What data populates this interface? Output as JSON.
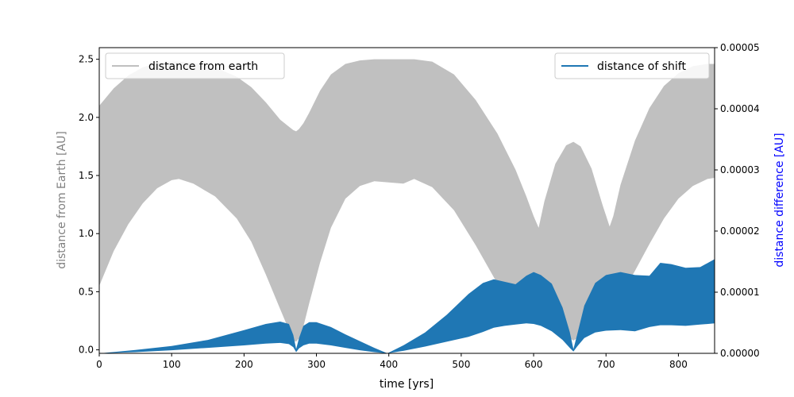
{
  "chart_data": {
    "type": "area",
    "title": "",
    "xlabel": "time [yrs]",
    "ylabel_left": "distance from Earth [AU]",
    "ylabel_right": "distance difference [AU]",
    "xlim": [
      0,
      850
    ],
    "ylim_left": [
      -0.03,
      2.6
    ],
    "ylim_right": [
      0,
      5e-05
    ],
    "x_ticks": [
      0,
      100,
      200,
      300,
      400,
      500,
      600,
      700,
      800
    ],
    "y_left_ticks": [
      0.0,
      0.5,
      1.0,
      1.5,
      2.0,
      2.5
    ],
    "y_left_tick_labels": [
      "0.0",
      "0.5",
      "1.0",
      "1.5",
      "2.0",
      "2.5"
    ],
    "y_right_ticks": [
      0,
      1e-05,
      2e-05,
      3e-05,
      4e-05,
      5e-05
    ],
    "y_right_tick_labels": [
      "0.00000",
      "0.00001",
      "0.00002",
      "0.00003",
      "0.00004",
      "0.00005"
    ],
    "grid": false,
    "legend_left_position": "upper-left",
    "legend_right_position": "upper-right",
    "colors": {
      "earth_band": "#c0c0c0",
      "shift_band": "#1f77b4",
      "left_label": "#808080",
      "right_label": "#0000ff"
    },
    "series": [
      {
        "name": "distance from earth",
        "axis": "left",
        "style": "band",
        "x": [
          0,
          20,
          40,
          60,
          80,
          100,
          110,
          130,
          160,
          190,
          210,
          230,
          250,
          260,
          268,
          272,
          276,
          282,
          290,
          305,
          320,
          340,
          360,
          380,
          400,
          420,
          435,
          460,
          490,
          520,
          550,
          575,
          590,
          600,
          607,
          615,
          630,
          645,
          655,
          665,
          680,
          695,
          705,
          710,
          720,
          740,
          760,
          780,
          800,
          820,
          840,
          850
        ],
        "upper": [
          2.1,
          2.25,
          2.36,
          2.43,
          2.47,
          2.48,
          2.48,
          2.47,
          2.43,
          2.35,
          2.26,
          2.13,
          1.98,
          1.93,
          1.89,
          1.88,
          1.9,
          1.95,
          2.04,
          2.23,
          2.37,
          2.46,
          2.49,
          2.5,
          2.5,
          2.5,
          2.5,
          2.48,
          2.37,
          2.15,
          1.86,
          1.55,
          1.32,
          1.15,
          1.05,
          1.28,
          1.6,
          1.76,
          1.79,
          1.75,
          1.56,
          1.25,
          1.06,
          1.15,
          1.42,
          1.8,
          2.08,
          2.27,
          2.38,
          2.44,
          2.46,
          2.46
        ],
        "lower": [
          0.55,
          0.85,
          1.08,
          1.26,
          1.39,
          1.46,
          1.47,
          1.43,
          1.32,
          1.13,
          0.93,
          0.65,
          0.35,
          0.2,
          0.08,
          0.07,
          0.1,
          0.2,
          0.4,
          0.75,
          1.05,
          1.3,
          1.41,
          1.45,
          1.44,
          1.43,
          1.47,
          1.4,
          1.2,
          0.9,
          0.57,
          0.4,
          0.32,
          0.3,
          0.29,
          0.27,
          0.2,
          0.12,
          0.08,
          0.12,
          0.22,
          0.32,
          0.36,
          0.37,
          0.46,
          0.68,
          0.91,
          1.13,
          1.3,
          1.41,
          1.47,
          1.48
        ]
      },
      {
        "name": "distance of shift",
        "axis": "right",
        "style": "band",
        "x": [
          0,
          50,
          100,
          150,
          200,
          230,
          250,
          262,
          268,
          272,
          276,
          282,
          290,
          300,
          320,
          340,
          360,
          380,
          398,
          420,
          450,
          480,
          510,
          530,
          545,
          560,
          575,
          590,
          600,
          610,
          625,
          640,
          650,
          655,
          660,
          670,
          685,
          700,
          720,
          740,
          760,
          775,
          790,
          810,
          830,
          850
        ],
        "upper": [
          0.0,
          5.5e-07,
          1.2e-06,
          2.2e-06,
          3.8e-06,
          4.8e-06,
          5.2e-06,
          4.8e-06,
          3e-06,
          7e-07,
          2.5e-06,
          4.5e-06,
          5.1e-06,
          5.1e-06,
          4.3e-06,
          3.1e-06,
          2e-06,
          9e-07,
          0.0,
          1.3e-06,
          3.4e-06,
          6.3e-06,
          9.7e-06,
          1.15e-05,
          1.21e-05,
          1.17e-05,
          1.13e-05,
          1.27e-05,
          1.33e-05,
          1.28e-05,
          1.14e-05,
          7.5e-06,
          3.5e-06,
          7e-07,
          3e-06,
          7.8e-06,
          1.15e-05,
          1.28e-05,
          1.33e-05,
          1.28e-05,
          1.27e-05,
          1.48e-05,
          1.46e-05,
          1.4e-05,
          1.41e-05,
          1.54e-05
        ],
        "lower": [
          0.0,
          2e-07,
          5e-07,
          9e-07,
          1.3e-06,
          1.6e-06,
          1.7e-06,
          1.5e-06,
          1e-06,
          2e-07,
          8e-07,
          1.3e-06,
          1.6e-06,
          1.6e-06,
          1.3e-06,
          9e-07,
          5e-07,
          2e-07,
          0.0,
          4e-07,
          1.1e-06,
          1.9e-06,
          2.7e-06,
          3.5e-06,
          4.2e-06,
          4.5e-06,
          4.7e-06,
          4.9e-06,
          4.8e-06,
          4.5e-06,
          3.6e-06,
          2.2e-06,
          9e-07,
          3e-07,
          1.1e-06,
          2.5e-06,
          3.4e-06,
          3.7e-06,
          3.8e-06,
          3.6e-06,
          4.3e-06,
          4.6e-06,
          4.6e-06,
          4.5e-06,
          4.7e-06,
          4.9e-06
        ]
      }
    ]
  }
}
